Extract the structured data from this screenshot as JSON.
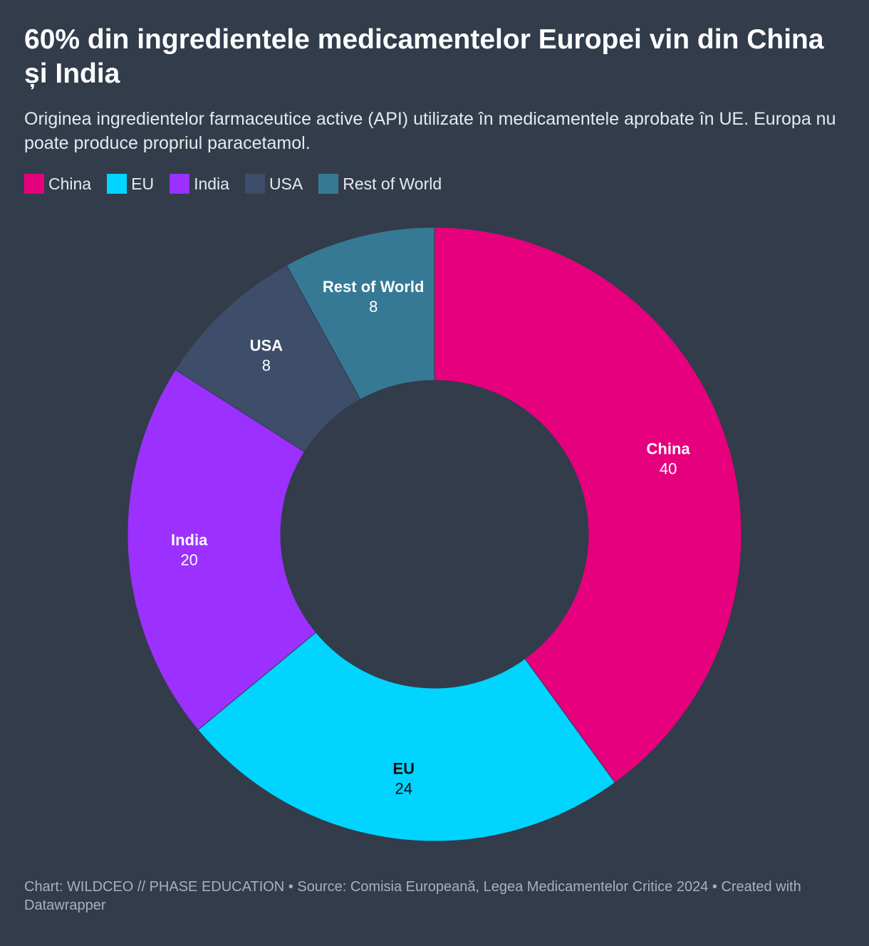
{
  "title": "60% din ingredientele medicamentelor Europei vin din China și India",
  "subtitle": "Originea ingredientelor farmaceutice active (API) utilizate în medicamentele aprobate în UE. Europa nu poate produce propriul paracetamol.",
  "legend": [
    {
      "label": "China",
      "color": "#e6007e"
    },
    {
      "label": "EU",
      "color": "#00d4ff"
    },
    {
      "label": "India",
      "color": "#9b30ff"
    },
    {
      "label": "USA",
      "color": "#3d4d6a"
    },
    {
      "label": "Rest of World",
      "color": "#367995"
    }
  ],
  "chart_data": {
    "type": "pie",
    "variant": "donut",
    "categories": [
      "China",
      "EU",
      "India",
      "USA",
      "Rest of World"
    ],
    "values": [
      40,
      24,
      20,
      8,
      8
    ],
    "colors": [
      "#e6007e",
      "#00d4ff",
      "#9b30ff",
      "#3d4d6a",
      "#367995"
    ],
    "label_colors": [
      "#ffffff",
      "#111111",
      "#ffffff",
      "#ffffff",
      "#ffffff"
    ],
    "start": "top, clockwise"
  },
  "footer": "Chart: WILDCEO // PHASE EDUCATION • Source: Comisia Europeană, Legea Medicamentelor Critice 2024 • Created with Datawrapper"
}
